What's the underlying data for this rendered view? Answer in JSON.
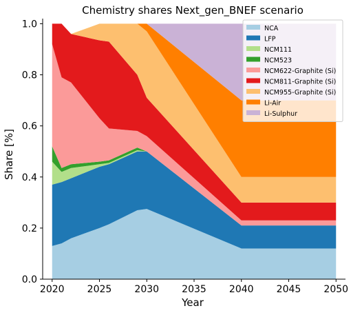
{
  "chart_data": {
    "type": "area",
    "title": "Chemistry shares Next_gen_BNEF scenario",
    "xlabel": "Year",
    "ylabel": "Share [%]",
    "xlim": [
      2019,
      2051
    ],
    "ylim": [
      0,
      1.02
    ],
    "xticks": [
      2020,
      2025,
      2030,
      2035,
      2040,
      2045,
      2050
    ],
    "yticks": [
      0.0,
      0.2,
      0.4,
      0.6,
      0.8,
      1.0
    ],
    "grid": false,
    "stacked": true,
    "legend_position": "top-right",
    "x": [
      2020,
      2021,
      2022,
      2025,
      2026,
      2029,
      2030,
      2040,
      2050
    ],
    "series": [
      {
        "name": "NCA",
        "color": "#a6cee3",
        "values": [
          0.13,
          0.14,
          0.16,
          0.2,
          0.215,
          0.27,
          0.275,
          0.12,
          0.12
        ]
      },
      {
        "name": "LFP",
        "color": "#1f78b4",
        "values": [
          0.24,
          0.24,
          0.235,
          0.24,
          0.235,
          0.23,
          0.225,
          0.09,
          0.09
        ]
      },
      {
        "name": "NCM111",
        "color": "#b2df8a",
        "values": [
          0.09,
          0.04,
          0.04,
          0.01,
          0.005,
          0.005,
          0.0,
          0.0,
          0.0
        ]
      },
      {
        "name": "NCM523",
        "color": "#33a02c",
        "values": [
          0.06,
          0.015,
          0.015,
          0.01,
          0.01,
          0.01,
          0.0,
          0.0,
          0.0
        ]
      },
      {
        "name": "NCM622-Graphite (Si)",
        "color": "#fb9a99",
        "values": [
          0.4,
          0.355,
          0.32,
          0.17,
          0.125,
          0.065,
          0.06,
          0.02,
          0.02
        ]
      },
      {
        "name": "NCM811-Graphite (Si)",
        "color": "#e31a1c",
        "values": [
          0.08,
          0.21,
          0.19,
          0.305,
          0.34,
          0.22,
          0.15,
          0.07,
          0.07
        ]
      },
      {
        "name": "NCM955-Graphite (Si)",
        "color": "#fdbf6f",
        "values": [
          0.0,
          0.0,
          0.0,
          0.065,
          0.07,
          0.2,
          0.26,
          0.1,
          0.1
        ]
      },
      {
        "name": "Li-Air",
        "color": "#ff7f00",
        "values": [
          0.0,
          0.0,
          0.0,
          0.0,
          0.0,
          0.0,
          0.03,
          0.3,
          0.3
        ]
      },
      {
        "name": "Li-Sulphur",
        "color": "#cab2d6",
        "values": [
          0.0,
          0.0,
          0.0,
          0.0,
          0.0,
          0.0,
          0.0,
          0.3,
          0.3
        ]
      }
    ]
  }
}
